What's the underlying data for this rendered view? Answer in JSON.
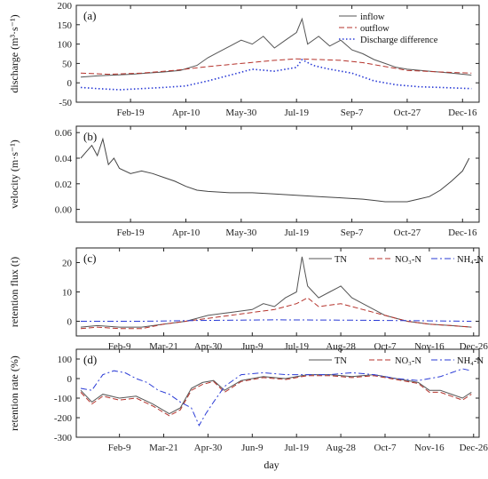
{
  "figure": {
    "xlabel": "day"
  },
  "chart_data": [
    {
      "type": "line",
      "panel": "(a)",
      "ylabel": "discharge (m³·s⁻¹)",
      "ylim": [
        -50,
        200
      ],
      "yticks": [
        -50,
        0,
        50,
        100,
        150,
        200
      ],
      "xlim": [
        1,
        365
      ],
      "xtick_days": [
        50,
        100,
        150,
        200,
        250,
        300,
        350
      ],
      "xtick_labels": [
        "Feb-19",
        "Apr-10",
        "May-30",
        "Jul-19",
        "Sep-7",
        "Oct-27",
        "Dec-16"
      ],
      "legend_position": "top-right",
      "series": [
        {
          "name": "inflow",
          "style": "solid",
          "color": "#555555",
          "x": [
            5,
            20,
            35,
            50,
            65,
            80,
            95,
            110,
            120,
            130,
            140,
            150,
            160,
            170,
            180,
            190,
            200,
            205,
            210,
            220,
            230,
            240,
            250,
            260,
            270,
            280,
            290,
            300,
            320,
            340,
            358
          ],
          "y": [
            15,
            18,
            20,
            22,
            25,
            28,
            32,
            45,
            65,
            80,
            95,
            110,
            100,
            120,
            90,
            110,
            130,
            165,
            100,
            120,
            95,
            110,
            85,
            75,
            60,
            50,
            40,
            35,
            30,
            25,
            20
          ]
        },
        {
          "name": "outflow",
          "style": "dashed",
          "color": "#b5332c",
          "x": [
            5,
            30,
            60,
            90,
            120,
            150,
            180,
            200,
            220,
            240,
            260,
            280,
            300,
            330,
            358
          ],
          "y": [
            25,
            22,
            25,
            32,
            42,
            50,
            58,
            62,
            60,
            58,
            52,
            42,
            32,
            28,
            25
          ]
        },
        {
          "name": "Discharge difference",
          "style": "dotted",
          "color": "#2a3bd6",
          "x": [
            5,
            20,
            40,
            60,
            80,
            100,
            120,
            140,
            160,
            180,
            200,
            205,
            215,
            230,
            250,
            270,
            290,
            310,
            330,
            358
          ],
          "y": [
            -12,
            -15,
            -18,
            -15,
            -12,
            -8,
            5,
            20,
            35,
            30,
            40,
            60,
            45,
            35,
            25,
            5,
            -5,
            -10,
            -12,
            -15
          ]
        }
      ]
    },
    {
      "type": "line",
      "panel": "(b)",
      "ylabel": "velocity (m·s⁻¹)",
      "ylim": [
        -0.01,
        0.065
      ],
      "yticks": [
        0.0,
        0.02,
        0.04,
        0.06
      ],
      "ytick_labels": [
        "0.00",
        "0.02",
        "0.04",
        "0.06"
      ],
      "xlim": [
        1,
        365
      ],
      "xtick_days": [
        50,
        100,
        150,
        200,
        250,
        300,
        350
      ],
      "xtick_labels": [
        "Feb-19",
        "Apr-10",
        "May-30",
        "Jul-19",
        "Sep-7",
        "Oct-27",
        "Dec-16"
      ],
      "series": [
        {
          "name": "",
          "style": "solid",
          "color": "#444444",
          "x": [
            5,
            10,
            15,
            20,
            25,
            30,
            35,
            40,
            50,
            60,
            70,
            80,
            90,
            100,
            110,
            120,
            140,
            160,
            180,
            200,
            220,
            240,
            260,
            270,
            280,
            290,
            300,
            310,
            320,
            330,
            340,
            350,
            356
          ],
          "y": [
            0.04,
            0.045,
            0.05,
            0.042,
            0.055,
            0.035,
            0.04,
            0.032,
            0.028,
            0.03,
            0.028,
            0.025,
            0.022,
            0.018,
            0.015,
            0.014,
            0.013,
            0.013,
            0.012,
            0.011,
            0.01,
            0.009,
            0.008,
            0.007,
            0.006,
            0.006,
            0.006,
            0.008,
            0.01,
            0.015,
            0.022,
            0.03,
            0.04
          ]
        }
      ]
    },
    {
      "type": "line",
      "panel": "(c)",
      "ylabel": "retention flux (t)",
      "ylim": [
        -5,
        25
      ],
      "yticks": [
        0,
        10,
        20
      ],
      "xlim": [
        1,
        365
      ],
      "xtick_days": [
        40,
        80,
        120,
        160,
        200,
        240,
        280,
        320,
        360
      ],
      "xtick_labels": [
        "Feb-9",
        "Mar-21",
        "Apr-30",
        "Jun-9",
        "Jul-19",
        "Aug-28",
        "Oct-7",
        "Nov-16",
        "Dec-26"
      ],
      "legend_position": "top-right",
      "series": [
        {
          "name": "TN",
          "style": "solid",
          "color": "#555555",
          "x": [
            5,
            20,
            40,
            60,
            80,
            100,
            120,
            140,
            160,
            170,
            180,
            190,
            200,
            205,
            210,
            215,
            220,
            230,
            240,
            250,
            260,
            270,
            280,
            300,
            320,
            340,
            358
          ],
          "y": [
            -2,
            -1.5,
            -2,
            -2,
            -1,
            0,
            2,
            3,
            4,
            6,
            5,
            8,
            10,
            22,
            12,
            10,
            8,
            10,
            12,
            8,
            6,
            4,
            2,
            0,
            -1,
            -1.5,
            -2
          ]
        },
        {
          "name": "NO₃-N",
          "style": "dashed",
          "color": "#b5332c",
          "x": [
            5,
            20,
            40,
            60,
            80,
            100,
            120,
            140,
            160,
            180,
            200,
            210,
            220,
            240,
            260,
            280,
            300,
            320,
            340,
            358
          ],
          "y": [
            -2.5,
            -2,
            -2.5,
            -2.5,
            -1,
            0,
            1,
            2,
            3,
            4,
            6,
            8,
            5,
            6,
            4,
            2,
            0,
            -1,
            -1.5,
            -2
          ]
        },
        {
          "name": "NH₄-N",
          "style": "dashdot",
          "color": "#2a3bd6",
          "x": [
            5,
            60,
            120,
            180,
            240,
            300,
            358
          ],
          "y": [
            0,
            0,
            0.3,
            0.5,
            0.4,
            0.2,
            0
          ]
        }
      ]
    },
    {
      "type": "line",
      "panel": "(d)",
      "ylabel": "retention rate (%)",
      "ylim": [
        -300,
        150
      ],
      "yticks": [
        -300,
        -200,
        -100,
        0,
        100
      ],
      "xlim": [
        1,
        365
      ],
      "xtick_days": [
        40,
        80,
        120,
        160,
        200,
        240,
        280,
        320,
        360
      ],
      "xtick_labels": [
        "Feb-9",
        "Mar-21",
        "Apr-30",
        "Jun-9",
        "Jul-19",
        "Aug-28",
        "Oct-7",
        "Nov-16",
        "Dec-26"
      ],
      "legend_position": "top-right",
      "series": [
        {
          "name": "TN",
          "style": "solid",
          "color": "#555555",
          "x": [
            5,
            15,
            25,
            40,
            55,
            70,
            85,
            95,
            105,
            115,
            125,
            135,
            150,
            170,
            190,
            210,
            230,
            250,
            270,
            290,
            310,
            320,
            330,
            340,
            350,
            358
          ],
          "y": [
            -60,
            -120,
            -80,
            -100,
            -90,
            -130,
            -180,
            -150,
            -50,
            -20,
            -10,
            -60,
            -10,
            10,
            0,
            20,
            20,
            10,
            20,
            0,
            -20,
            -60,
            -60,
            -80,
            -100,
            -70
          ]
        },
        {
          "name": "NO₃-N",
          "style": "dashed",
          "color": "#b5332c",
          "x": [
            5,
            15,
            25,
            40,
            55,
            70,
            85,
            95,
            105,
            115,
            125,
            135,
            150,
            170,
            190,
            210,
            230,
            250,
            270,
            290,
            310,
            320,
            330,
            340,
            350,
            358
          ],
          "y": [
            -70,
            -130,
            -90,
            -110,
            -100,
            -140,
            -190,
            -160,
            -60,
            -30,
            -15,
            -70,
            -15,
            5,
            -5,
            15,
            15,
            5,
            15,
            -5,
            -25,
            -70,
            -70,
            -90,
            -110,
            -80
          ]
        },
        {
          "name": "NH₄-N",
          "style": "dashdot",
          "color": "#2a3bd6",
          "x": [
            5,
            15,
            25,
            35,
            45,
            55,
            65,
            75,
            85,
            95,
            105,
            112,
            118,
            125,
            135,
            150,
            170,
            190,
            210,
            230,
            250,
            270,
            290,
            310,
            330,
            340,
            350,
            358
          ],
          "y": [
            -50,
            -60,
            20,
            40,
            30,
            0,
            -20,
            -60,
            -80,
            -120,
            -150,
            -240,
            -180,
            -120,
            -40,
            20,
            30,
            20,
            20,
            20,
            30,
            20,
            0,
            -10,
            10,
            30,
            50,
            40
          ]
        }
      ]
    }
  ]
}
